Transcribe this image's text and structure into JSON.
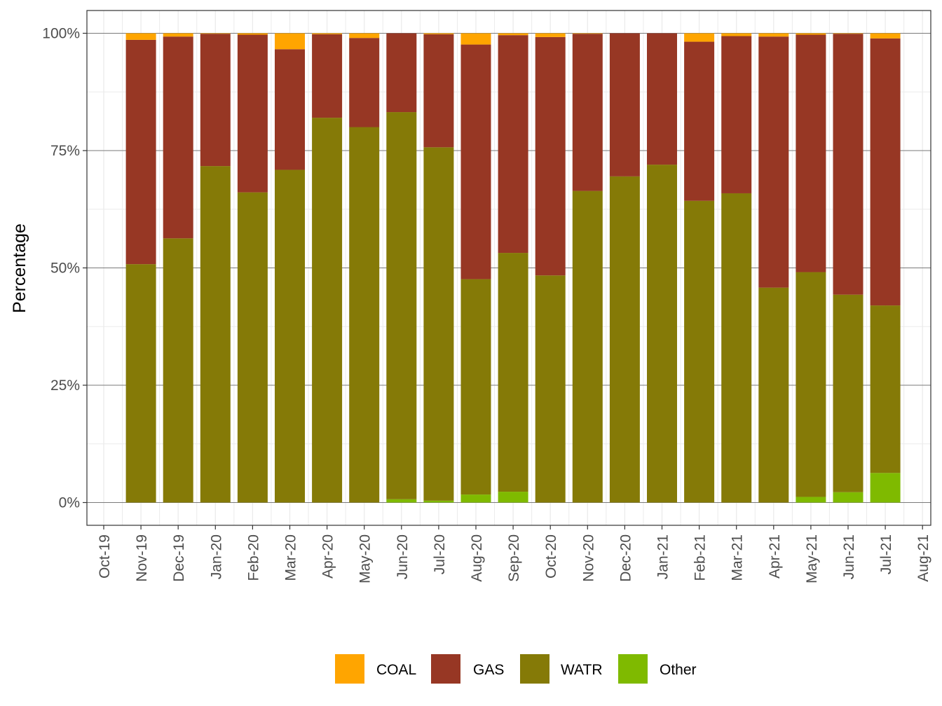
{
  "chart_data": {
    "type": "bar",
    "stacked": true,
    "percent": true,
    "title": "",
    "xlabel": "",
    "ylabel": "Percentage",
    "ylim": [
      0,
      1
    ],
    "y_ticks": [
      {
        "value": 0,
        "label": "0%"
      },
      {
        "value": 0.25,
        "label": "25%"
      },
      {
        "value": 0.5,
        "label": "50%"
      },
      {
        "value": 0.75,
        "label": "75%"
      },
      {
        "value": 1,
        "label": "100%"
      }
    ],
    "x_ticks": [
      "Oct-19",
      "Nov-19",
      "Dec-19",
      "Jan-20",
      "Feb-20",
      "Mar-20",
      "Apr-20",
      "May-20",
      "Jun-20",
      "Jul-20",
      "Aug-20",
      "Sep-20",
      "Oct-20",
      "Nov-20",
      "Dec-20",
      "Jan-21",
      "Feb-21",
      "Mar-21",
      "Apr-21",
      "May-21",
      "Jun-21",
      "Jul-21",
      "Aug-21"
    ],
    "categories": [
      "Nov-19",
      "Dec-19",
      "Jan-20",
      "Feb-20",
      "Mar-20",
      "Apr-20",
      "May-20",
      "Jun-20",
      "Jul-20",
      "Aug-20",
      "Sep-20",
      "Oct-20",
      "Nov-20",
      "Dec-20",
      "Jan-21",
      "Feb-21",
      "Mar-21",
      "Apr-21",
      "May-21",
      "Jun-21",
      "Jul-21"
    ],
    "series": [
      {
        "name": "Other",
        "color": "#7fba00",
        "values": [
          0,
          0,
          0,
          0,
          0,
          0,
          0,
          0.007,
          0.004,
          0.017,
          0.023,
          0,
          0,
          0,
          0,
          0,
          0,
          0,
          0.012,
          0.022,
          0.063
        ]
      },
      {
        "name": "WATR",
        "color": "#857a07",
        "values": [
          0.508,
          0.563,
          0.717,
          0.661,
          0.709,
          0.82,
          0.8,
          0.825,
          0.753,
          0.459,
          0.509,
          0.484,
          0.664,
          0.695,
          0.72,
          0.643,
          0.659,
          0.458,
          0.479,
          0.421,
          0.357
        ]
      },
      {
        "name": "GAS",
        "color": "#973724",
        "values": [
          0.478,
          0.43,
          0.282,
          0.336,
          0.257,
          0.178,
          0.19,
          0.168,
          0.241,
          0.5,
          0.464,
          0.508,
          0.335,
          0.305,
          0.28,
          0.339,
          0.335,
          0.535,
          0.506,
          0.556,
          0.569
        ]
      },
      {
        "name": "COAL",
        "color": "#ffa500",
        "values": [
          0.014,
          0.007,
          0.001,
          0.003,
          0.034,
          0.002,
          0.01,
          0,
          0.002,
          0.024,
          0.004,
          0.008,
          0.001,
          0,
          0,
          0.018,
          0.006,
          0.007,
          0.003,
          0.001,
          0.011
        ]
      }
    ],
    "legend": {
      "position": "bottom",
      "entries": [
        {
          "label": "COAL",
          "color": "#ffa500"
        },
        {
          "label": "GAS",
          "color": "#973724"
        },
        {
          "label": "WATR",
          "color": "#857a07"
        },
        {
          "label": "Other",
          "color": "#7fba00"
        }
      ]
    },
    "grid": true,
    "theme": "bw"
  }
}
